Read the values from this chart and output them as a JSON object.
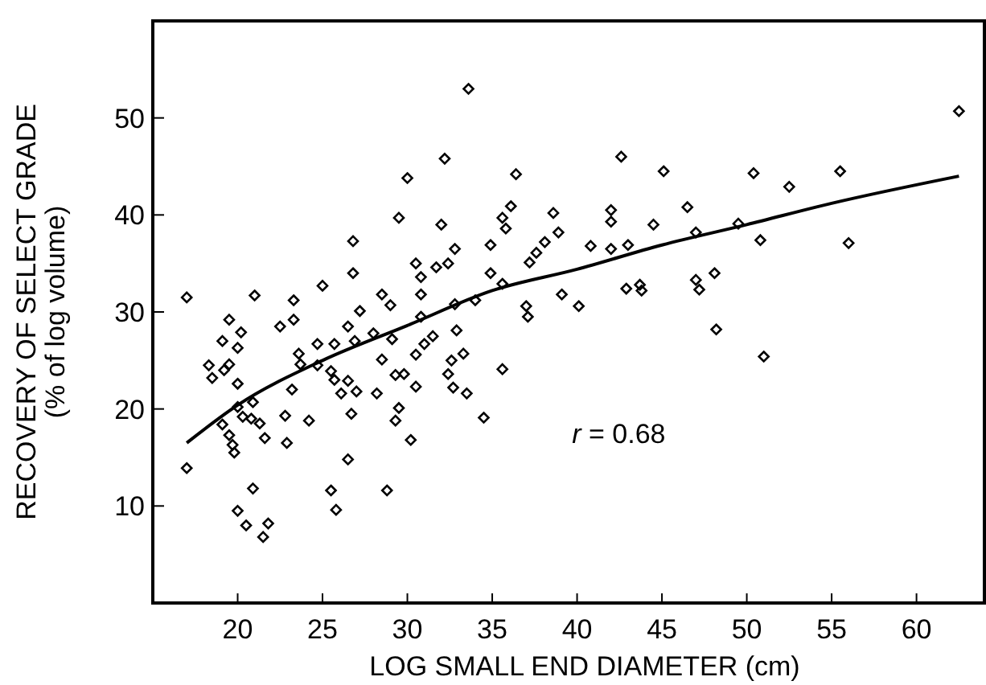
{
  "chart_data": {
    "type": "scatter",
    "xlabel": "LOG SMALL END DIAMETER (cm)",
    "ylabel": "RECOVERY OF SELECT GRADE\n(% of log volume)",
    "xlim": [
      15,
      64
    ],
    "ylim": [
      0,
      60
    ],
    "xticks": [
      20,
      25,
      30,
      35,
      40,
      45,
      50,
      55,
      60
    ],
    "yticks": [
      10,
      20,
      30,
      40,
      50
    ],
    "grid": false,
    "annotations": [
      "r = 0.68"
    ],
    "series": [
      {
        "color": "#000000",
        "marker": "diamond",
        "x": [
          17.0,
          19.5,
          21.0,
          23.3,
          25.0,
          26.8,
          26.8,
          27.2,
          28.5,
          29.0,
          29.5,
          30.0,
          30.5,
          30.8,
          30.8,
          31.7,
          32.0,
          32.2,
          32.4,
          32.8,
          33.6,
          34.0,
          34.9,
          34.9,
          35.6,
          36.1,
          36.4,
          35.6,
          35.8,
          37.2,
          37.6,
          38.1,
          38.6,
          38.9,
          39.1,
          37.0,
          37.1,
          32.8,
          62.5,
          42.6,
          45.1,
          50.4,
          52.5,
          55.5,
          42.0,
          42.0,
          46.5,
          44.5,
          40.8,
          42.0,
          43.0,
          47.0,
          49.5,
          50.8,
          56.0,
          40.1,
          42.9,
          43.7,
          43.8,
          47.0,
          47.2,
          48.1,
          48.2,
          51.0,
          20.2,
          19.1,
          18.3,
          18.5,
          19.2,
          19.5,
          20.0,
          20.0,
          22.5,
          23.3,
          23.6,
          23.7,
          24.7,
          24.7,
          25.7,
          26.5,
          26.9,
          28.0,
          29.1,
          30.8,
          31.5,
          31.0,
          32.9,
          32.6,
          33.3,
          32.4,
          32.7,
          33.5,
          35.6,
          34.5,
          30.5,
          28.5,
          29.3,
          29.8,
          30.5,
          28.2,
          29.5,
          29.3,
          30.2,
          28.8,
          25.5,
          25.7,
          26.1,
          26.5,
          27.0,
          26.7,
          26.5,
          25.5,
          25.8,
          24.2,
          23.2,
          22.8,
          22.9,
          20.9,
          20.3,
          20.8,
          21.3,
          21.6,
          20.0,
          19.1,
          19.5,
          19.7,
          19.8,
          17.0,
          20.9,
          20.0,
          20.5,
          21.8,
          21.5
        ],
        "values": [
          31.5,
          29.2,
          31.7,
          31.2,
          32.7,
          37.3,
          34.0,
          30.1,
          31.8,
          30.7,
          39.7,
          43.8,
          35.0,
          33.6,
          31.8,
          34.6,
          39.0,
          45.8,
          35.0,
          36.5,
          53.0,
          31.2,
          36.9,
          34.0,
          32.9,
          40.9,
          44.2,
          39.7,
          38.6,
          35.1,
          36.1,
          37.2,
          40.2,
          38.2,
          31.8,
          30.6,
          29.5,
          30.8,
          50.7,
          46.0,
          44.5,
          44.3,
          42.9,
          44.5,
          40.5,
          39.3,
          40.8,
          39.0,
          36.8,
          36.5,
          36.9,
          38.2,
          39.1,
          37.4,
          37.1,
          30.6,
          32.4,
          32.8,
          32.2,
          33.3,
          32.3,
          34.0,
          28.2,
          25.4,
          27.9,
          27.0,
          24.5,
          23.2,
          24.0,
          24.6,
          26.3,
          22.6,
          28.5,
          29.2,
          25.7,
          24.6,
          26.7,
          24.5,
          26.7,
          28.5,
          27.0,
          27.8,
          27.2,
          29.5,
          27.5,
          26.7,
          28.1,
          25.0,
          25.7,
          23.6,
          22.2,
          21.6,
          24.1,
          19.1,
          25.6,
          25.1,
          23.5,
          23.6,
          22.3,
          21.6,
          20.1,
          18.8,
          16.8,
          11.6,
          23.9,
          23.0,
          21.6,
          22.9,
          21.8,
          19.5,
          14.8,
          11.6,
          9.6,
          18.8,
          22.0,
          19.3,
          16.5,
          20.7,
          19.2,
          19.0,
          18.5,
          17.0,
          20.2,
          18.4,
          17.3,
          16.3,
          15.5,
          13.9,
          11.8,
          9.5,
          8.0,
          8.2,
          6.8
        ]
      },
      {
        "type": "line",
        "color": "#000000",
        "marker": "none",
        "line_style": "solid",
        "x": [
          17,
          20,
          25,
          30,
          35,
          40,
          45,
          50,
          55,
          62.5
        ],
        "values": [
          16.5,
          20.4,
          25.0,
          28.6,
          32.2,
          34.4,
          36.9,
          39.0,
          41.2,
          44.0
        ]
      }
    ]
  }
}
